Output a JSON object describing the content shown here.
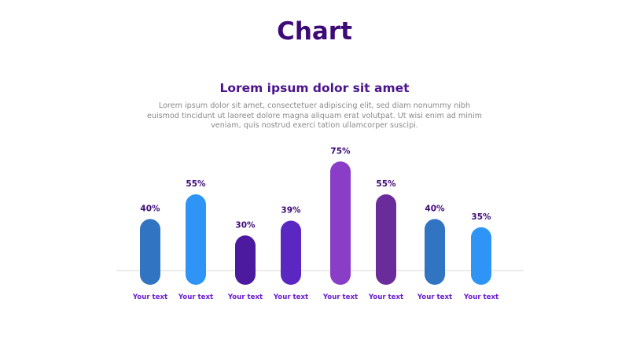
{
  "page": {
    "title": "Chart",
    "subtitle": "Lorem ipsum dolor sit amet",
    "description": "Lorem ipsum dolor sit amet, consectetuer adipiscing elit, sed diam nonummy nibh euismod tincidunt ut laoreet dolore magna aliquam erat volutpat. Ut wisi enim ad minim veniam, quis nostrud exerci tation ullamcorper suscipi."
  },
  "chart_data": {
    "type": "bar",
    "categories": [
      "Your text",
      "Your text",
      "Your text",
      "Your text",
      "Your text",
      "Your text",
      "Your text",
      "Your text"
    ],
    "values": [
      40,
      55,
      30,
      39,
      75,
      55,
      40,
      35
    ],
    "value_labels": [
      "40%",
      "55%",
      "30%",
      "39%",
      "75%",
      "55%",
      "40%",
      "35%"
    ],
    "colors": [
      "#3174c2",
      "#2e95f7",
      "#4b1a9e",
      "#5b27c2",
      "#8a3dc6",
      "#6b2c9b",
      "#3174c2",
      "#2e95f7"
    ],
    "ylim": [
      0,
      100
    ],
    "grid": false,
    "legend": "none",
    "baseline_color": "#d9d9d9"
  }
}
